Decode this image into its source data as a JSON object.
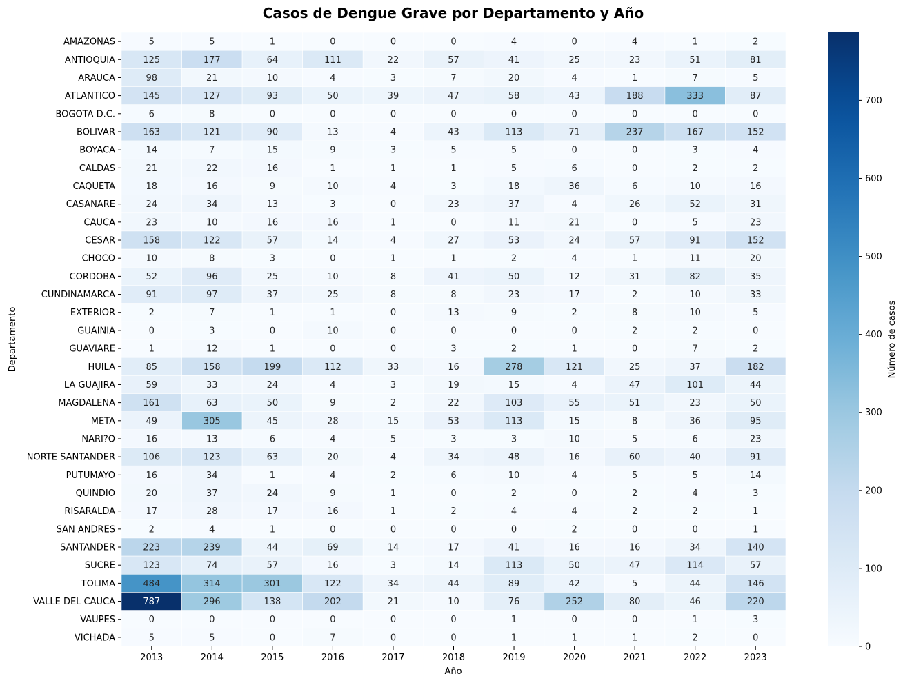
{
  "chart_data": {
    "type": "heatmap",
    "title": "Casos de Dengue Grave por Departamento y Año",
    "xlabel": "Año",
    "ylabel": "Departamento",
    "colorbar_label": "Número de casos",
    "colormap": "Blues",
    "color_range": [
      0,
      787
    ],
    "colorbar_ticks": [
      "0",
      "100",
      "200",
      "300",
      "400",
      "500",
      "600",
      "700"
    ],
    "annotations": true,
    "years": [
      "2013",
      "2014",
      "2015",
      "2016",
      "2017",
      "2018",
      "2019",
      "2020",
      "2021",
      "2022",
      "2023"
    ],
    "departments": [
      "AMAZONAS",
      "ANTIOQUIA",
      "ARAUCA",
      "ATLANTICO",
      "BOGOTA D.C.",
      "BOLIVAR",
      "BOYACA",
      "CALDAS",
      "CAQUETA",
      "CASANARE",
      "CAUCA",
      "CESAR",
      "CHOCO",
      "CORDOBA",
      "CUNDINAMARCA",
      "EXTERIOR",
      "GUAINIA",
      "GUAVIARE",
      "HUILA",
      "LA GUAJIRA",
      "MAGDALENA",
      "META",
      "NARI?O",
      "NORTE SANTANDER",
      "PUTUMAYO",
      "QUINDIO",
      "RISARALDA",
      "SAN ANDRES",
      "SANTANDER",
      "SUCRE",
      "TOLIMA",
      "VALLE DEL CAUCA",
      "VAUPES",
      "VICHADA"
    ],
    "values": [
      [
        5,
        5,
        1,
        0,
        0,
        0,
        4,
        0,
        4,
        1,
        2
      ],
      [
        125,
        177,
        64,
        111,
        22,
        57,
        41,
        25,
        23,
        51,
        81
      ],
      [
        98,
        21,
        10,
        4,
        3,
        7,
        20,
        4,
        1,
        7,
        5
      ],
      [
        145,
        127,
        93,
        50,
        39,
        47,
        58,
        43,
        188,
        333,
        87
      ],
      [
        6,
        8,
        0,
        0,
        0,
        0,
        0,
        0,
        0,
        0,
        0
      ],
      [
        163,
        121,
        90,
        13,
        4,
        43,
        113,
        71,
        237,
        167,
        152
      ],
      [
        14,
        7,
        15,
        9,
        3,
        5,
        5,
        0,
        0,
        3,
        4
      ],
      [
        21,
        22,
        16,
        1,
        1,
        1,
        5,
        6,
        0,
        2,
        2
      ],
      [
        18,
        16,
        9,
        10,
        4,
        3,
        18,
        36,
        6,
        10,
        16
      ],
      [
        24,
        34,
        13,
        3,
        0,
        23,
        37,
        4,
        26,
        52,
        31
      ],
      [
        23,
        10,
        16,
        16,
        1,
        0,
        11,
        21,
        0,
        5,
        23
      ],
      [
        158,
        122,
        57,
        14,
        4,
        27,
        53,
        24,
        57,
        91,
        152
      ],
      [
        10,
        8,
        3,
        0,
        1,
        1,
        2,
        4,
        1,
        11,
        20
      ],
      [
        52,
        96,
        25,
        10,
        8,
        41,
        50,
        12,
        31,
        82,
        35
      ],
      [
        91,
        97,
        37,
        25,
        8,
        8,
        23,
        17,
        2,
        10,
        33
      ],
      [
        2,
        7,
        1,
        1,
        0,
        13,
        9,
        2,
        8,
        10,
        5
      ],
      [
        0,
        3,
        0,
        10,
        0,
        0,
        0,
        0,
        2,
        2,
        0
      ],
      [
        1,
        12,
        1,
        0,
        0,
        3,
        2,
        1,
        0,
        7,
        2
      ],
      [
        85,
        158,
        199,
        112,
        33,
        16,
        278,
        121,
        25,
        37,
        182
      ],
      [
        59,
        33,
        24,
        4,
        3,
        19,
        15,
        4,
        47,
        101,
        44
      ],
      [
        161,
        63,
        50,
        9,
        2,
        22,
        103,
        55,
        51,
        23,
        50
      ],
      [
        49,
        305,
        45,
        28,
        15,
        53,
        113,
        15,
        8,
        36,
        95
      ],
      [
        16,
        13,
        6,
        4,
        5,
        3,
        3,
        10,
        5,
        6,
        23
      ],
      [
        106,
        123,
        63,
        20,
        4,
        34,
        48,
        16,
        60,
        40,
        91
      ],
      [
        16,
        34,
        1,
        4,
        2,
        6,
        10,
        4,
        5,
        5,
        14
      ],
      [
        20,
        37,
        24,
        9,
        1,
        0,
        2,
        0,
        2,
        4,
        3
      ],
      [
        17,
        28,
        17,
        16,
        1,
        2,
        4,
        4,
        2,
        2,
        1
      ],
      [
        2,
        4,
        1,
        0,
        0,
        0,
        0,
        2,
        0,
        0,
        1
      ],
      [
        223,
        239,
        44,
        69,
        14,
        17,
        41,
        16,
        16,
        34,
        140
      ],
      [
        123,
        74,
        57,
        16,
        3,
        14,
        113,
        50,
        47,
        114,
        57
      ],
      [
        484,
        314,
        301,
        122,
        34,
        44,
        89,
        42,
        5,
        44,
        146
      ],
      [
        787,
        296,
        138,
        202,
        21,
        10,
        76,
        252,
        80,
        46,
        220
      ],
      [
        0,
        0,
        0,
        0,
        0,
        0,
        1,
        0,
        0,
        1,
        3
      ],
      [
        5,
        5,
        0,
        7,
        0,
        0,
        1,
        1,
        1,
        2,
        0
      ]
    ]
  }
}
